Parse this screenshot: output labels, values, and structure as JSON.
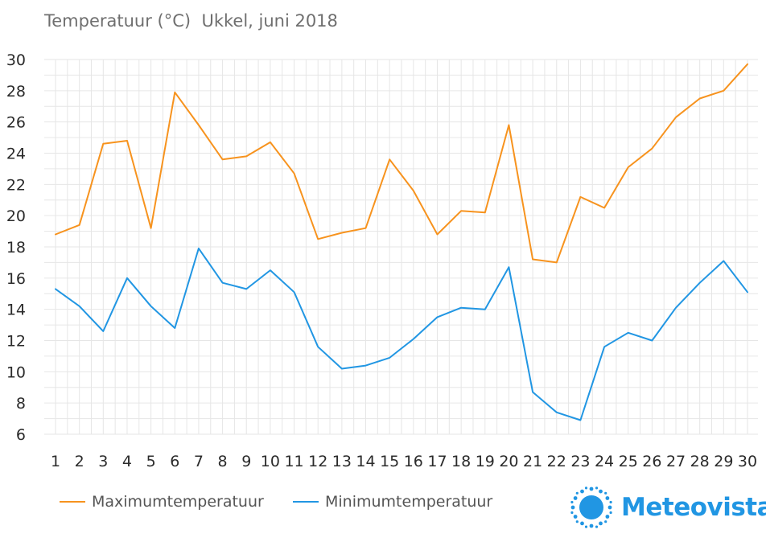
{
  "title": "Temperatuur (°C)  Ukkel, juni 2018",
  "legend": {
    "max_label": "Maximumtemperatuur",
    "min_label": "Minimumtemperatuur"
  },
  "brand": {
    "name": "Meteovista",
    "icon": "sun-icon"
  },
  "colors": {
    "max": "#f7931e",
    "min": "#2196e3",
    "grid": "#e6e6e6",
    "brand": "#2196e3"
  },
  "chart_data": {
    "type": "line",
    "title": "Temperatuur (°C)  Ukkel, juni 2018",
    "x": [
      1,
      2,
      3,
      4,
      5,
      6,
      7,
      8,
      9,
      10,
      11,
      12,
      13,
      14,
      15,
      16,
      17,
      18,
      19,
      20,
      21,
      22,
      23,
      24,
      25,
      26,
      27,
      28,
      29,
      30
    ],
    "ylim": [
      6,
      30
    ],
    "yticks": [
      6,
      8,
      10,
      12,
      14,
      16,
      18,
      20,
      22,
      24,
      26,
      28,
      30
    ],
    "grid": true,
    "legend_position": "bottom-left",
    "series": [
      {
        "name": "Maximumtemperatuur",
        "color": "#f7931e",
        "values": [
          18.8,
          19.4,
          24.6,
          24.8,
          19.2,
          27.9,
          25.8,
          23.6,
          23.8,
          24.7,
          22.7,
          18.5,
          18.9,
          19.2,
          23.6,
          21.6,
          18.8,
          20.3,
          20.2,
          25.8,
          17.2,
          17.0,
          21.2,
          20.5,
          23.1,
          24.3,
          26.3,
          27.5,
          28.0,
          29.7
        ]
      },
      {
        "name": "Minimumtemperatuur",
        "color": "#2196e3",
        "values": [
          15.3,
          14.2,
          12.6,
          16.0,
          14.2,
          12.8,
          17.9,
          15.7,
          15.3,
          16.5,
          15.1,
          11.6,
          10.2,
          10.4,
          10.9,
          12.1,
          13.5,
          14.1,
          14.0,
          16.7,
          8.7,
          7.4,
          6.9,
          11.6,
          12.5,
          12.0,
          14.1,
          15.7,
          17.1,
          15.1
        ]
      }
    ]
  }
}
